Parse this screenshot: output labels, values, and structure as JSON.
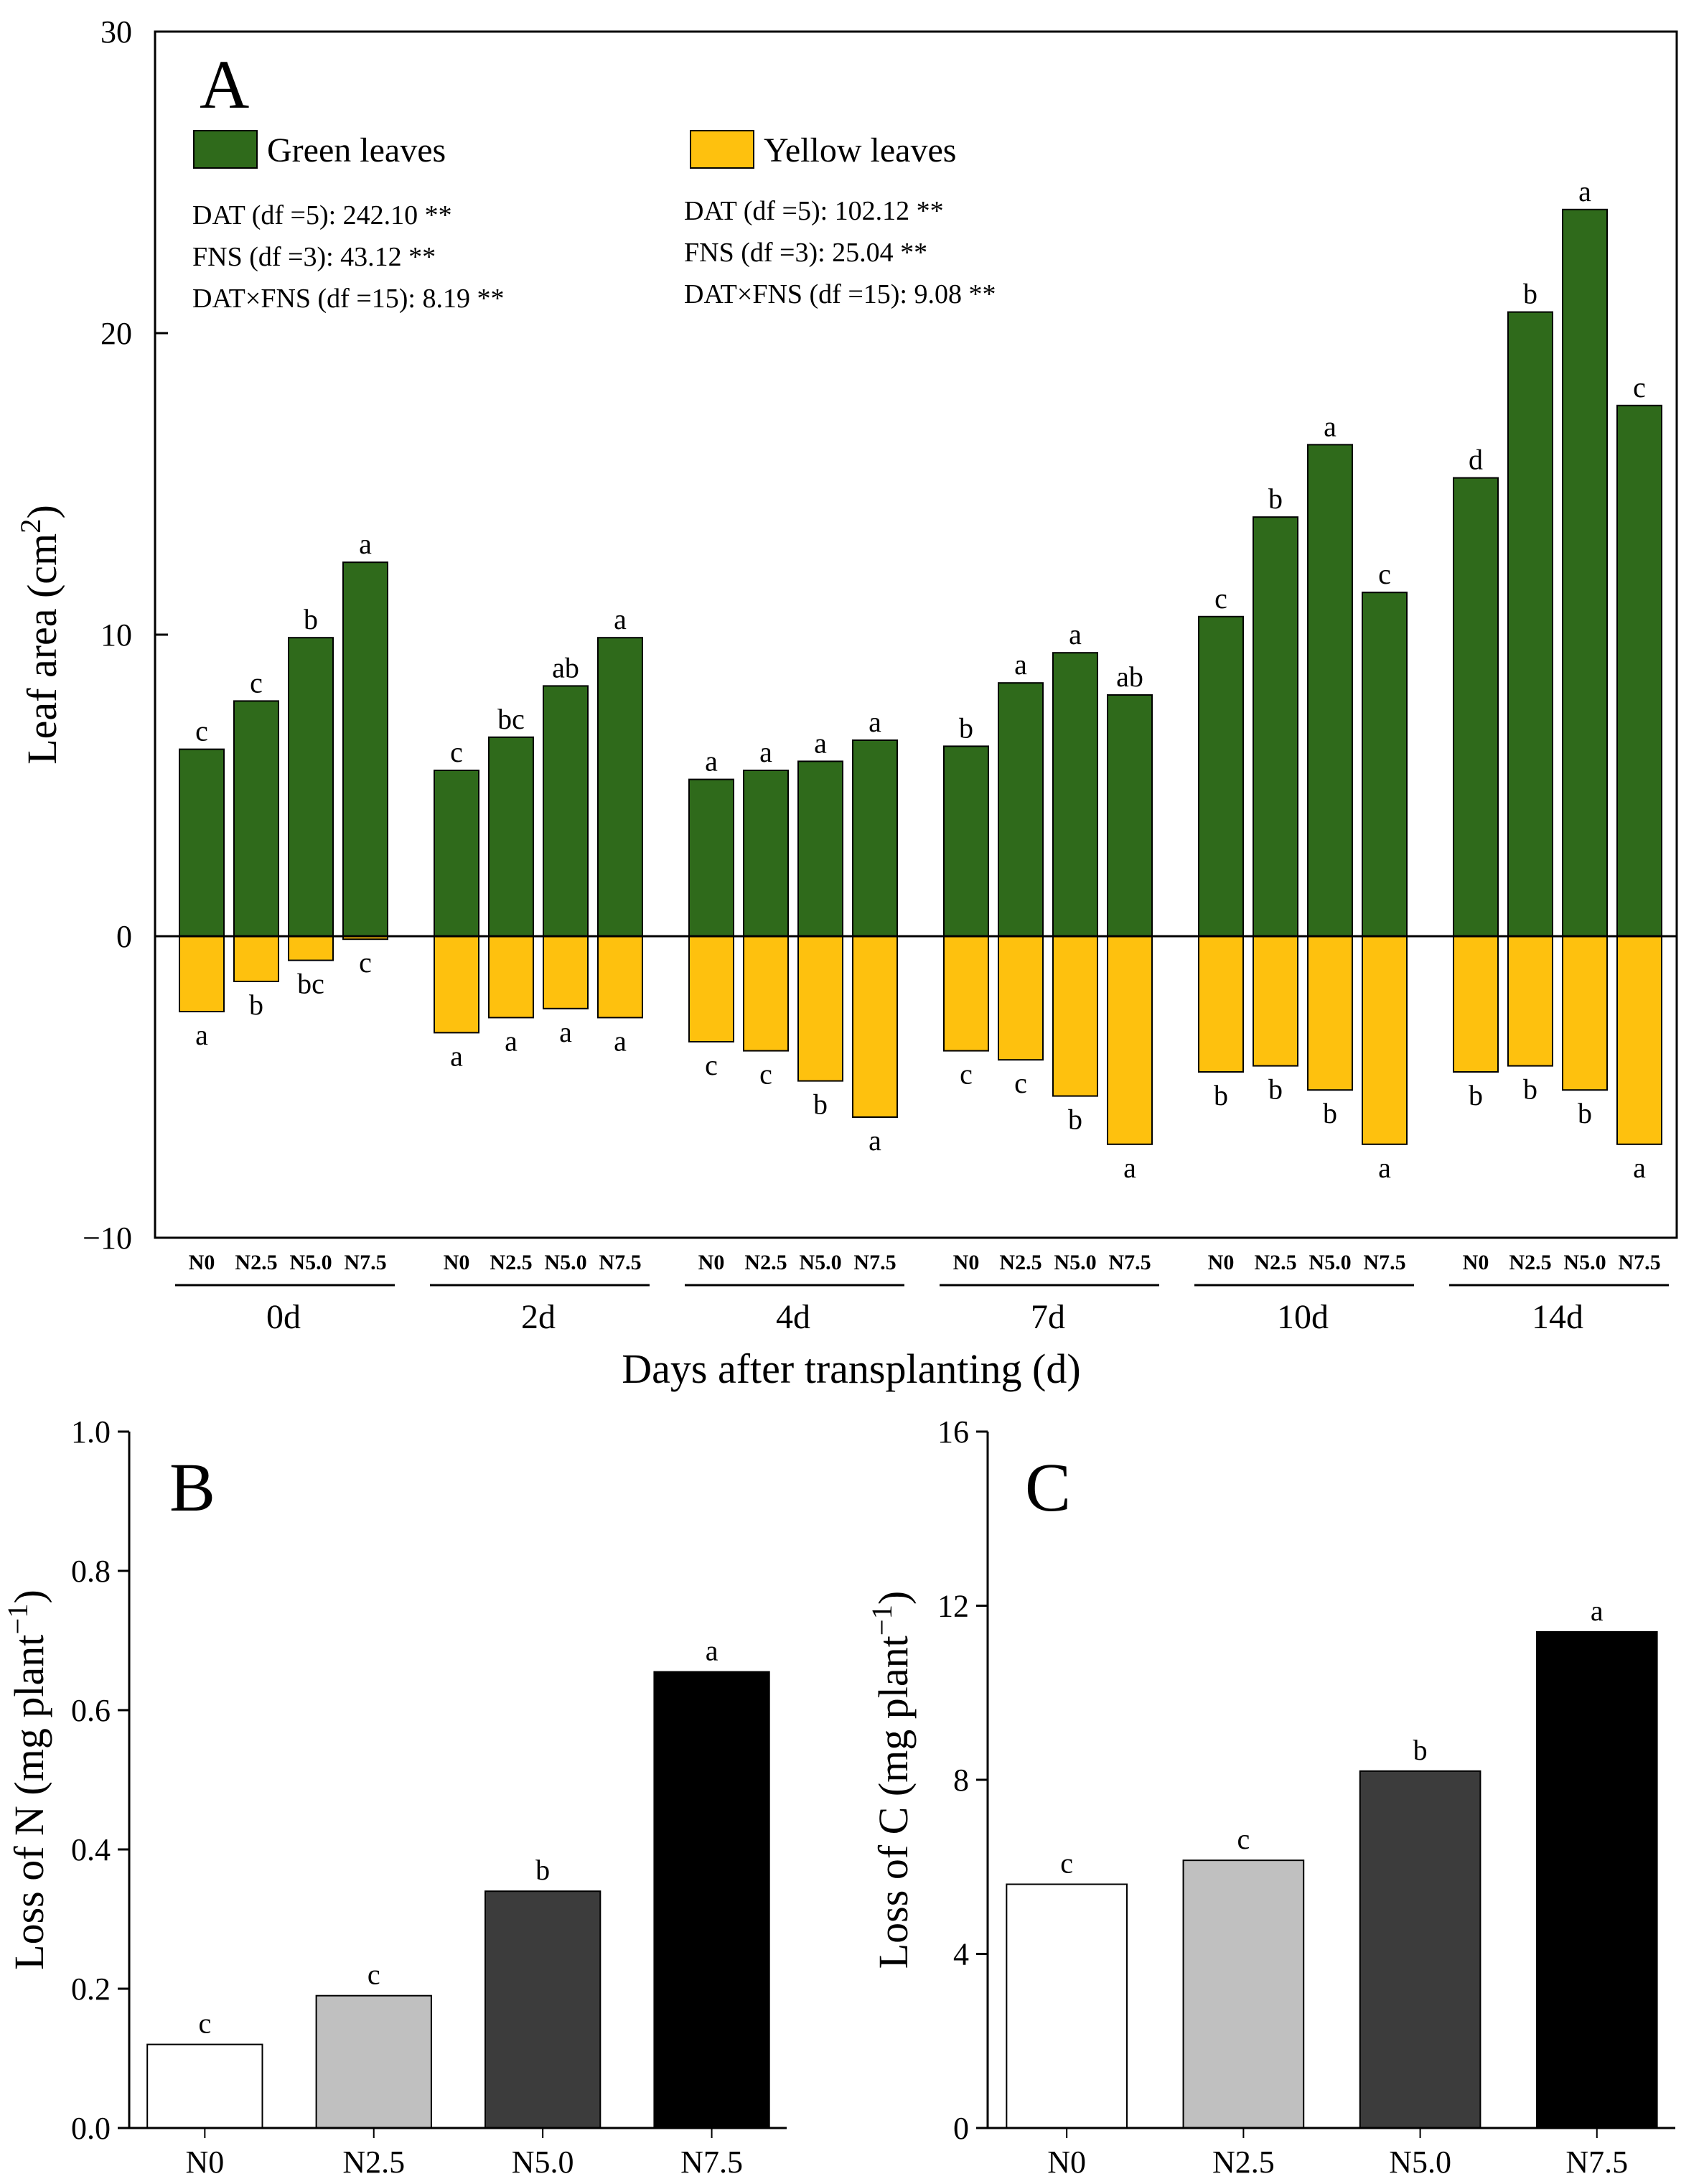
{
  "chart_data": [
    {
      "panel": "A",
      "type": "bar",
      "ylabel": "Leaf area (cm",
      "ylabel_sup": "2",
      "ylabel_close": ")",
      "xlabel": "Days after transplanting (d)",
      "ylim": [
        -10,
        30
      ],
      "yticks": [
        -10,
        0,
        10,
        20,
        30
      ],
      "ytick_labels": [
        "−10",
        "0",
        "10",
        "20",
        "30"
      ],
      "treatments": [
        "N0",
        "N2.5",
        "N5.0",
        "N7.5"
      ],
      "groups": [
        "0d",
        "2d",
        "4d",
        "7d",
        "10d",
        "14d"
      ],
      "legend": [
        {
          "label": "Green leaves",
          "color": "#2f6a1b"
        },
        {
          "label": "Yellow leaves",
          "color": "#fec10e"
        }
      ],
      "stats_green": [
        "DAT (df =5): 242.10 **",
        "FNS (df =3): 43.12 **",
        "DAT×FNS (df =15): 8.19 **"
      ],
      "stats_yellow": [
        "DAT (df =5): 102.12 **",
        "FNS (df =3): 25.04 **",
        "DAT×FNS (df =15): 9.08 **"
      ],
      "series": [
        {
          "name": "Green leaves",
          "values": [
            [
              6.2,
              7.8,
              9.9,
              12.4
            ],
            [
              5.5,
              6.6,
              8.3,
              9.9
            ],
            [
              5.2,
              5.5,
              5.8,
              6.5
            ],
            [
              6.3,
              8.4,
              9.4,
              8.0
            ],
            [
              10.6,
              13.9,
              16.3,
              11.4
            ],
            [
              15.2,
              20.7,
              24.1,
              17.6
            ]
          ],
          "letters": [
            [
              "c",
              "c",
              "b",
              "a"
            ],
            [
              "c",
              "bc",
              "ab",
              "a"
            ],
            [
              "a",
              "a",
              "a",
              "a"
            ],
            [
              "b",
              "a",
              "a",
              "ab"
            ],
            [
              "c",
              "b",
              "a",
              "c"
            ],
            [
              "d",
              "b",
              "a",
              "c"
            ]
          ]
        },
        {
          "name": "Yellow leaves",
          "values": [
            [
              -2.5,
              -1.5,
              -0.8,
              -0.1
            ],
            [
              -3.2,
              -2.7,
              -2.4,
              -2.7
            ],
            [
              -3.5,
              -3.8,
              -4.8,
              -6.0
            ],
            [
              -3.8,
              -4.1,
              -5.3,
              -6.9
            ],
            [
              -4.5,
              -4.3,
              -5.1,
              -6.9
            ],
            [
              -4.5,
              -4.3,
              -5.1,
              -6.9
            ]
          ],
          "letters": [
            [
              "a",
              "b",
              "bc",
              "c"
            ],
            [
              "a",
              "a",
              "a",
              "a"
            ],
            [
              "c",
              "c",
              "b",
              "a"
            ],
            [
              "c",
              "c",
              "b",
              "a"
            ],
            [
              "b",
              "b",
              "b",
              "a"
            ],
            [
              "b",
              "b",
              "b",
              "a"
            ]
          ]
        }
      ]
    },
    {
      "panel": "B",
      "type": "bar",
      "ylabel": "Loss of N (mg plant",
      "ylabel_sup": "−1",
      "ylabel_close": ")",
      "categories": [
        "N0",
        "N2.5",
        "N5.0",
        "N7.5"
      ],
      "values": [
        0.12,
        0.19,
        0.34,
        0.655
      ],
      "letters": [
        "c",
        "c",
        "b",
        "a"
      ],
      "colors": [
        "#ffffff",
        "#c0c0c0",
        "#3c3c3c",
        "#000000"
      ],
      "ylim": [
        0.0,
        1.0
      ],
      "yticks": [
        0.0,
        0.2,
        0.4,
        0.6,
        0.8,
        1.0
      ],
      "ytick_labels": [
        "0.0",
        "0.2",
        "0.4",
        "0.6",
        "0.8",
        "1.0"
      ]
    },
    {
      "panel": "C",
      "type": "bar",
      "ylabel": "Loss of C (mg plant",
      "ylabel_sup": "−1",
      "ylabel_close": ")",
      "categories": [
        "N0",
        "N2.5",
        "N5.0",
        "N7.5"
      ],
      "values": [
        5.6,
        6.15,
        8.2,
        11.4
      ],
      "letters": [
        "c",
        "c",
        "b",
        "a"
      ],
      "colors": [
        "#ffffff",
        "#c0c0c0",
        "#3c3c3c",
        "#000000"
      ],
      "ylim": [
        0,
        16
      ],
      "yticks": [
        0,
        4,
        8,
        12,
        16
      ],
      "ytick_labels": [
        "0",
        "4",
        "8",
        "12",
        "16"
      ]
    }
  ]
}
